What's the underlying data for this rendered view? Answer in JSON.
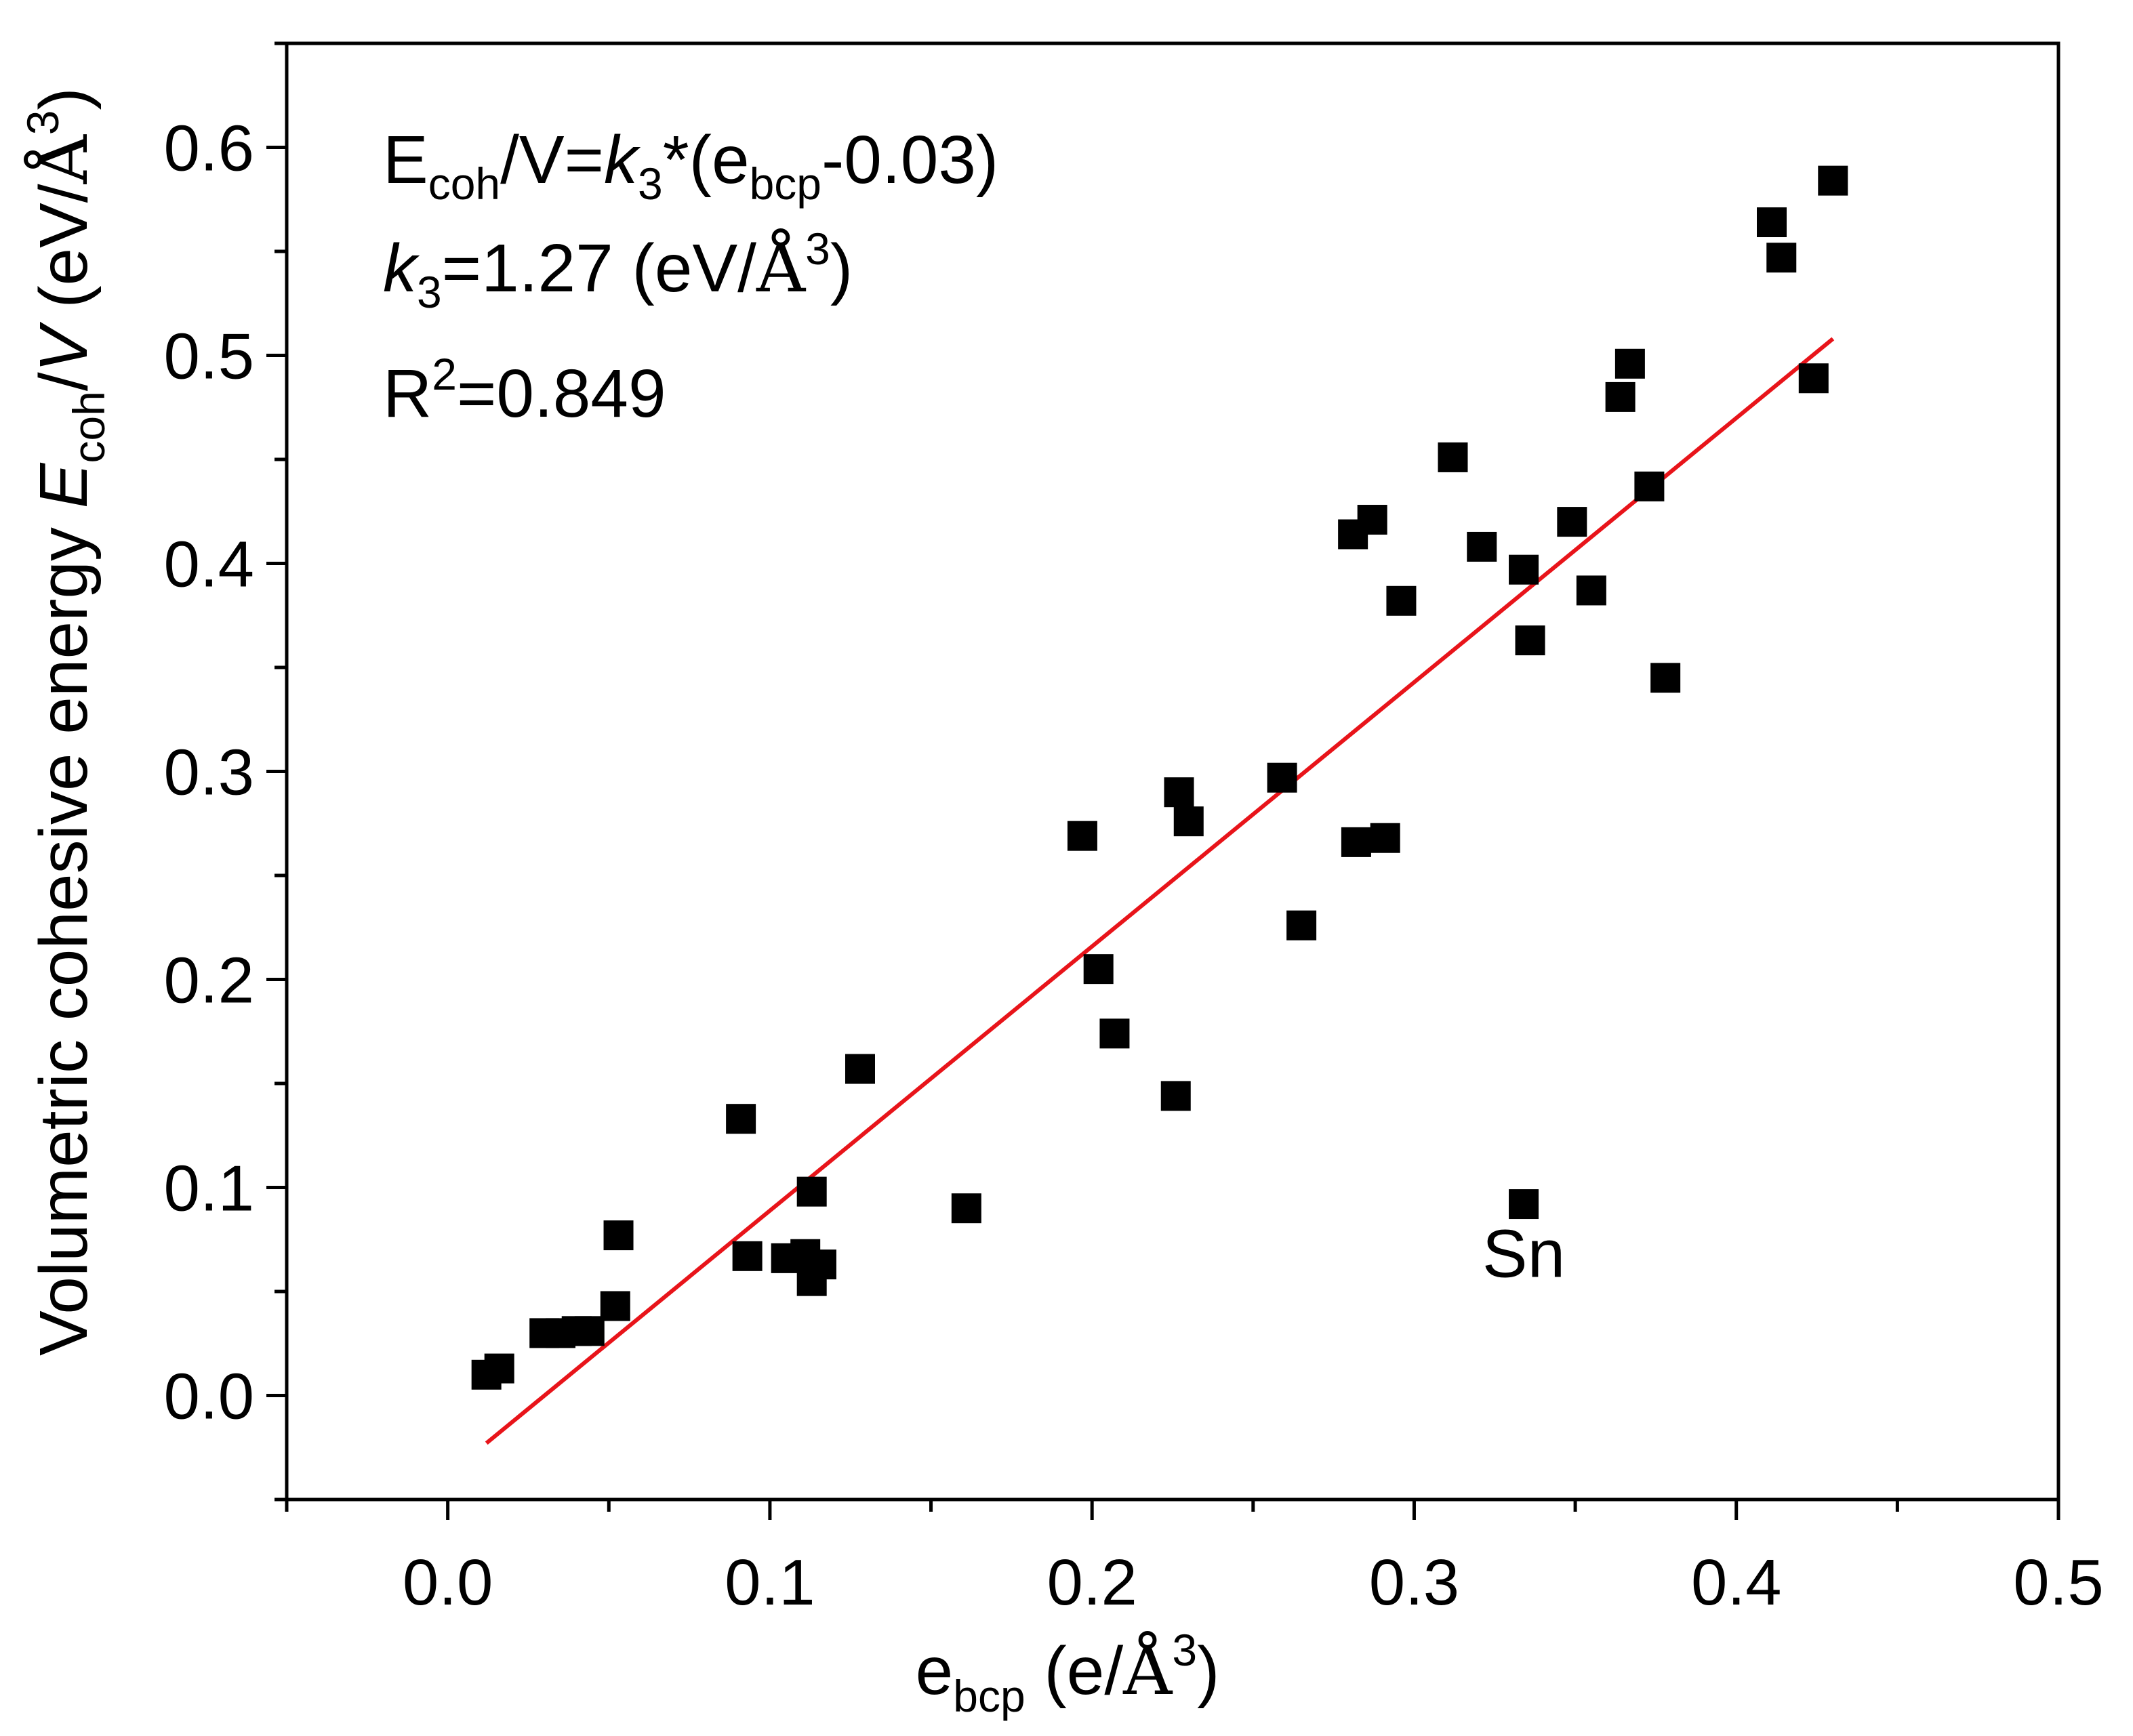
{
  "chart_data": {
    "type": "scatter",
    "title": "",
    "xlabel": {
      "base": "e",
      "sub": "bcp",
      "unit_open": " (e/",
      "angstrom": "Å",
      "sup": "3",
      "unit_close": ")"
    },
    "ylabel": {
      "prefix": "Volumetric cohesive energy ",
      "E": "E",
      "sub": "coh",
      "slash": "/",
      "V": "V",
      "unit_open": " (eV/",
      "angstrom": "Å",
      "sup": "3",
      "unit_close": ")"
    },
    "xlim": [
      -0.05,
      0.5
    ],
    "ylim": [
      -0.05,
      0.65
    ],
    "xticks": [
      0.0,
      0.1,
      0.2,
      0.3,
      0.4,
      0.5
    ],
    "xtick_labels": [
      "0.0",
      "0.1",
      "0.2",
      "0.3",
      "0.4",
      "0.5"
    ],
    "yticks": [
      0.0,
      0.1,
      0.2,
      0.3,
      0.4,
      0.5,
      0.6
    ],
    "ytick_labels": [
      "0.0",
      "0.1",
      "0.2",
      "0.3",
      "0.4",
      "0.5",
      "0.6"
    ],
    "grid": false,
    "series": [
      {
        "name": "data",
        "marker": "square",
        "color": "#000000",
        "points": [
          {
            "x": 0.012,
            "y": 0.01
          },
          {
            "x": 0.016,
            "y": 0.013
          },
          {
            "x": 0.03,
            "y": 0.03
          },
          {
            "x": 0.035,
            "y": 0.03
          },
          {
            "x": 0.04,
            "y": 0.031
          },
          {
            "x": 0.044,
            "y": 0.031
          },
          {
            "x": 0.052,
            "y": 0.043
          },
          {
            "x": 0.053,
            "y": 0.077
          },
          {
            "x": 0.091,
            "y": 0.133
          },
          {
            "x": 0.093,
            "y": 0.067
          },
          {
            "x": 0.105,
            "y": 0.066
          },
          {
            "x": 0.111,
            "y": 0.068
          },
          {
            "x": 0.113,
            "y": 0.055
          },
          {
            "x": 0.113,
            "y": 0.098
          },
          {
            "x": 0.116,
            "y": 0.063
          },
          {
            "x": 0.128,
            "y": 0.157
          },
          {
            "x": 0.161,
            "y": 0.09
          },
          {
            "x": 0.197,
            "y": 0.269
          },
          {
            "x": 0.202,
            "y": 0.205
          },
          {
            "x": 0.207,
            "y": 0.174
          },
          {
            "x": 0.226,
            "y": 0.144
          },
          {
            "x": 0.227,
            "y": 0.29
          },
          {
            "x": 0.23,
            "y": 0.276
          },
          {
            "x": 0.259,
            "y": 0.297
          },
          {
            "x": 0.265,
            "y": 0.226
          },
          {
            "x": 0.281,
            "y": 0.414
          },
          {
            "x": 0.282,
            "y": 0.266
          },
          {
            "x": 0.287,
            "y": 0.421
          },
          {
            "x": 0.291,
            "y": 0.268
          },
          {
            "x": 0.296,
            "y": 0.382
          },
          {
            "x": 0.312,
            "y": 0.451
          },
          {
            "x": 0.321,
            "y": 0.408
          },
          {
            "x": 0.334,
            "y": 0.092
          },
          {
            "x": 0.334,
            "y": 0.397
          },
          {
            "x": 0.336,
            "y": 0.363
          },
          {
            "x": 0.349,
            "y": 0.42
          },
          {
            "x": 0.355,
            "y": 0.387
          },
          {
            "x": 0.364,
            "y": 0.48
          },
          {
            "x": 0.367,
            "y": 0.496
          },
          {
            "x": 0.373,
            "y": 0.437
          },
          {
            "x": 0.378,
            "y": 0.345
          },
          {
            "x": 0.411,
            "y": 0.564
          },
          {
            "x": 0.414,
            "y": 0.547
          },
          {
            "x": 0.424,
            "y": 0.489
          },
          {
            "x": 0.43,
            "y": 0.584
          }
        ]
      }
    ],
    "fit_line": {
      "name": "linear fit",
      "color": "#e8141a",
      "x": [
        0.012,
        0.43
      ],
      "y": [
        -0.0229,
        0.508
      ]
    },
    "annotations": [
      {
        "text": "Sn",
        "x": 0.334,
        "y": 0.068
      }
    ],
    "equation": {
      "line1": {
        "a": "E",
        "a_sub": "coh",
        "b": "/V=",
        "k": "k",
        "k_sub": "3",
        "c": "*(e",
        "c_sub": "bcp",
        "d": "-0.03)"
      },
      "line2": {
        "k": "k",
        "k_sub": "3",
        "a": "=1.27 (eV/",
        "angstrom": "Å",
        "sup": "3",
        "b": ")"
      },
      "line3": {
        "a": "R",
        "sup": "2",
        "b": "=0.849"
      }
    }
  }
}
